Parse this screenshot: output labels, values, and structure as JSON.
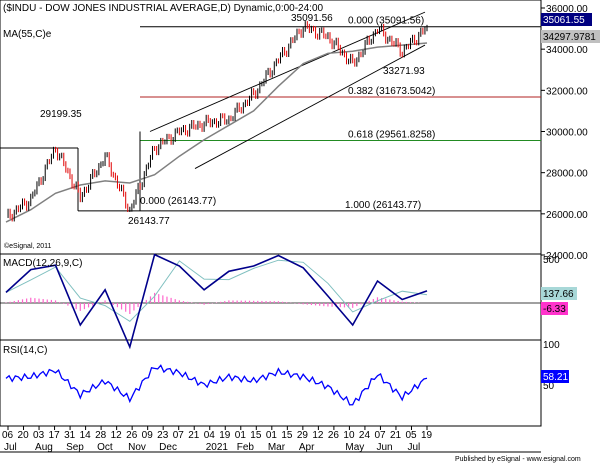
{
  "header": {
    "title": "($INDU - DOW JONES INDUSTRIAL AVERAGE,D) Dynamic,0:00-24:00",
    "ma_label": "MA(55,C)e"
  },
  "price_panel": {
    "y_ticks": [
      "36000.00",
      "34000.00",
      "32000.00",
      "30000.00",
      "28000.00",
      "26000.00",
      "24000.00"
    ],
    "last_value": "35061.55",
    "ma_value": "34297.9781",
    "annotations": {
      "high_left": "29199.35",
      "low_left": "26143.77",
      "peak": "35091.56",
      "recent_low": "33271.93"
    },
    "fib_levels": [
      {
        "label": "0.000 (35091.56)",
        "value": 35091.56,
        "color": "#000000"
      },
      {
        "label": "0.382 (31673.5042)",
        "value": 31673.5042,
        "color": "#b22222"
      },
      {
        "label": "0.618 (29561.8258)",
        "value": 29561.8258,
        "color": "#228b22"
      },
      {
        "label": "1.000 (26143.77)",
        "value": 26143.77,
        "color": "#000000"
      }
    ],
    "fib_start_label": "0.000 (26143.77)",
    "copyright": "©eSignal, 2011"
  },
  "macd_panel": {
    "label": "MACD(12,26,9,C)",
    "y_tick": "500",
    "value": "137.66",
    "hist_value": "-6.33"
  },
  "rsi_panel": {
    "label": "RSI(14,C)",
    "y_ticks": [
      "100",
      "50"
    ],
    "value": "58.21"
  },
  "x_axis": {
    "day_labels": [
      "06",
      "20",
      "03",
      "17",
      "31",
      "14",
      "28",
      "12",
      "26",
      "09",
      "23",
      "07",
      "21",
      "04",
      "19",
      "01",
      "15",
      "01",
      "15",
      "29",
      "12",
      "26",
      "10",
      "24",
      "07",
      "21",
      "05",
      "19"
    ],
    "month_labels": [
      "Jul",
      "Aug",
      "Sep",
      "Oct",
      "Nov",
      "Dec",
      "2021",
      "Feb",
      "Mar",
      "Apr",
      "May",
      "Jun",
      "Jul"
    ]
  },
  "footer": "Published by eSignal - www.esignal.com",
  "colors": {
    "up_candle": "#000000",
    "down_candle": "#e00000",
    "ma_line": "#808080",
    "macd_line": "#00008b",
    "signal_line": "#80c0c0",
    "histogram": "#ff66cc",
    "rsi_line": "#0000ff",
    "last_value_bg": "#000080",
    "ma_value_bg": "#c0c0c0",
    "macd_value_bg": "#a8d8d8",
    "hist_value_bg": "#ff33cc",
    "rsi_value_bg": "#0000ff"
  },
  "chart_data": [
    {
      "type": "candlestick",
      "title": "($INDU - DOW JONES INDUSTRIAL AVERAGE,D) Dynamic,0:00-24:00",
      "ylim": [
        24000,
        36000
      ],
      "series": [
        {
          "name": "$INDU",
          "x": [
            "2020-07-06",
            "2020-08-03",
            "2020-09-02",
            "2020-09-24",
            "2020-10-12",
            "2020-10-30",
            "2020-11-09",
            "2020-12-07",
            "2021-01-04",
            "2021-02-01",
            "2021-03-01",
            "2021-04-05",
            "2021-05-07",
            "2021-06-01",
            "2021-06-18",
            "2021-07-12",
            "2021-07-19",
            "2021-07-21"
          ],
          "values": [
            25800,
            26700,
            29199.35,
            26800,
            28800,
            26143.77,
            29200,
            30000,
            30400,
            30600,
            31800,
            33500,
            35091.56,
            34600,
            33271.93,
            35000,
            33900,
            35061.55
          ]
        },
        {
          "name": "MA(55,C)e",
          "values": [
            25600,
            26200,
            27000,
            27400,
            27600,
            27500,
            27900,
            28800,
            29600,
            30300,
            31000,
            32200,
            33300,
            33800,
            33900,
            34100,
            34200,
            34297.9781
          ]
        }
      ],
      "fibonacci": [
        {
          "ratio": 0.0,
          "value": 35091.56
        },
        {
          "ratio": 0.382,
          "value": 31673.5042
        },
        {
          "ratio": 0.618,
          "value": 29561.8258
        },
        {
          "ratio": 1.0,
          "value": 26143.77
        }
      ]
    },
    {
      "type": "line",
      "title": "MACD(12,26,9,C)",
      "series": [
        {
          "name": "MACD",
          "values": [
            120,
            380,
            430,
            -250,
            150,
            -500,
            550,
            420,
            150,
            360,
            420,
            540,
            400,
            80,
            -250,
            250,
            40,
            137.66
          ]
        },
        {
          "name": "Histogram",
          "values": [
            10,
            120,
            60,
            -180,
            60,
            -250,
            230,
            60,
            -40,
            60,
            50,
            40,
            -30,
            -80,
            -110,
            130,
            30,
            -6.33
          ]
        }
      ]
    },
    {
      "type": "line",
      "title": "RSI(14,C)",
      "ylim": [
        0,
        100
      ],
      "series": [
        {
          "name": "RSI",
          "values": [
            58,
            60,
            68,
            38,
            55,
            33,
            72,
            65,
            50,
            60,
            55,
            66,
            60,
            48,
            26,
            63,
            35,
            58.21
          ]
        }
      ]
    }
  ]
}
